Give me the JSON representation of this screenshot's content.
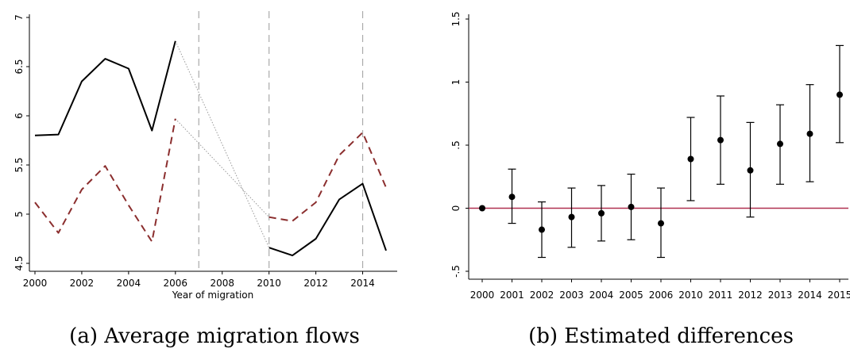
{
  "chart_data": [
    {
      "type": "line",
      "caption": "(a) Average migration flows",
      "xlabel": "Year of migration",
      "ylabel": "",
      "xlim": [
        2000,
        2015
      ],
      "ylim": [
        4.5,
        7
      ],
      "xticks": [
        "2000",
        "2002",
        "2004",
        "2006",
        "2008",
        "2010",
        "2012",
        "2014"
      ],
      "yticks": [
        "4.5",
        "5",
        "5.5",
        "6",
        "6.5",
        "7"
      ],
      "vlines": [
        2007,
        2010,
        2014
      ],
      "series": [
        {
          "style": "solid",
          "color": "#000000",
          "x": [
            2000,
            2001,
            2002,
            2003,
            2004,
            2005,
            2006,
            2010,
            2011,
            2012,
            2013,
            2014,
            2015
          ],
          "y": [
            5.8,
            5.81,
            6.35,
            6.58,
            6.48,
            5.85,
            6.76,
            4.66,
            4.58,
            4.75,
            5.15,
            5.31,
            4.63
          ]
        },
        {
          "style": "dashed",
          "color": "#8b2e2e",
          "x": [
            2000,
            2001,
            2002,
            2003,
            2004,
            2005,
            2006,
            2010,
            2011,
            2012,
            2013,
            2014,
            2015
          ],
          "y": [
            5.12,
            4.81,
            5.25,
            5.49,
            5.09,
            4.72,
            5.97,
            4.97,
            4.93,
            5.12,
            5.6,
            5.83,
            5.27
          ]
        }
      ],
      "gap_connectors": [
        {
          "x": [
            2006,
            2010
          ],
          "y": [
            6.76,
            4.66
          ]
        },
        {
          "x": [
            2006,
            2010
          ],
          "y": [
            5.97,
            4.97
          ]
        }
      ],
      "grid": false
    },
    {
      "type": "scatter",
      "caption": "(b) Estimated differences",
      "xlabel": "",
      "ylabel": "",
      "categories": [
        "2000",
        "2001",
        "2002",
        "2003",
        "2004",
        "2005",
        "2006",
        "2010",
        "2011",
        "2012",
        "2013",
        "2014",
        "2015"
      ],
      "values": [
        0.0,
        0.09,
        -0.17,
        -0.07,
        -0.04,
        0.01,
        -0.12,
        0.39,
        0.54,
        0.3,
        0.51,
        0.59,
        0.9
      ],
      "ci_low": [
        0.0,
        -0.12,
        -0.39,
        -0.31,
        -0.26,
        -0.25,
        -0.39,
        0.06,
        0.19,
        -0.07,
        0.19,
        0.21,
        0.52
      ],
      "ci_high": [
        0.0,
        0.31,
        0.05,
        0.16,
        0.18,
        0.27,
        0.16,
        0.72,
        0.89,
        0.68,
        0.82,
        0.98,
        1.29
      ],
      "ylim": [
        -0.5,
        1.5
      ],
      "yticks": [
        "-.5",
        "0",
        ".5",
        "1",
        "1.5"
      ],
      "hline": 0,
      "hline_color": "#b03050",
      "grid": false
    }
  ]
}
